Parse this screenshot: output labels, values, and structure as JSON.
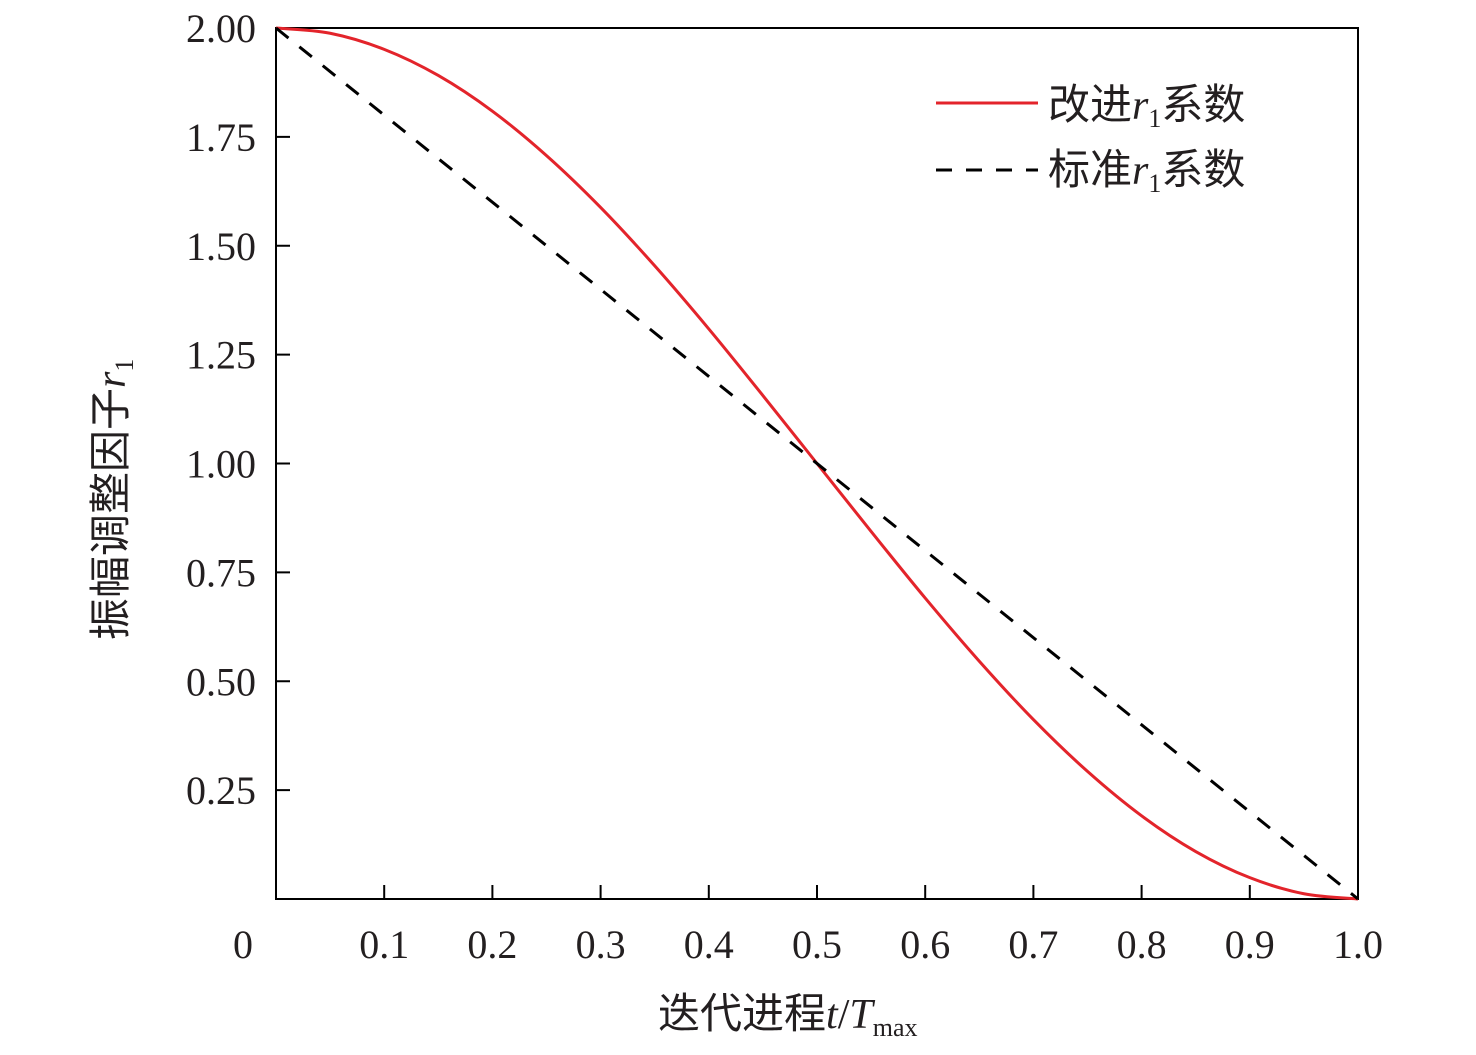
{
  "chart_data": {
    "type": "line",
    "title": "",
    "xlabel": {
      "prefix": "迭代进程",
      "var1": "t",
      "sep": "/",
      "var2": "T",
      "sub": "max"
    },
    "ylabel": {
      "prefix": "振幅调整因子",
      "var": "r",
      "sub": "1"
    },
    "xlim": [
      0,
      1.0
    ],
    "ylim": [
      0,
      2.0
    ],
    "x_ticks": [
      "0",
      "0.1",
      "0.2",
      "0.3",
      "0.4",
      "0.5",
      "0.6",
      "0.7",
      "0.8",
      "0.9",
      "1.0"
    ],
    "x_tick_values": [
      0,
      0.1,
      0.2,
      0.3,
      0.4,
      0.5,
      0.6,
      0.7,
      0.8,
      0.9,
      1.0
    ],
    "y_ticks": [
      "2.00",
      "1.75",
      "1.50",
      "1.25",
      "1.00",
      "0.75",
      "0.50",
      "0.25"
    ],
    "y_tick_values": [
      2.0,
      1.75,
      1.5,
      1.25,
      1.0,
      0.75,
      0.5,
      0.25
    ],
    "grid": false,
    "legend_position": "top-right",
    "series": [
      {
        "name": {
          "prefix": "改进",
          "var": "r",
          "sub": "1",
          "suffix": "系数"
        },
        "color": "#e3242b",
        "style": "solid",
        "x": [
          0,
          0.05,
          0.1,
          0.15,
          0.2,
          0.25,
          0.3,
          0.35,
          0.4,
          0.45,
          0.5,
          0.55,
          0.6,
          0.65,
          0.7,
          0.75,
          0.8,
          0.85,
          0.9,
          0.95,
          1.0
        ],
        "y": [
          2.0,
          1.988,
          1.951,
          1.891,
          1.809,
          1.707,
          1.588,
          1.454,
          1.309,
          1.156,
          1.0,
          0.844,
          0.691,
          0.546,
          0.412,
          0.293,
          0.191,
          0.109,
          0.049,
          0.012,
          0.0
        ]
      },
      {
        "name": {
          "prefix": "标准",
          "var": "r",
          "sub": "1",
          "suffix": "系数"
        },
        "color": "#000000",
        "style": "dashed",
        "x": [
          0,
          1.0
        ],
        "y": [
          2.0,
          0.0
        ]
      }
    ]
  }
}
